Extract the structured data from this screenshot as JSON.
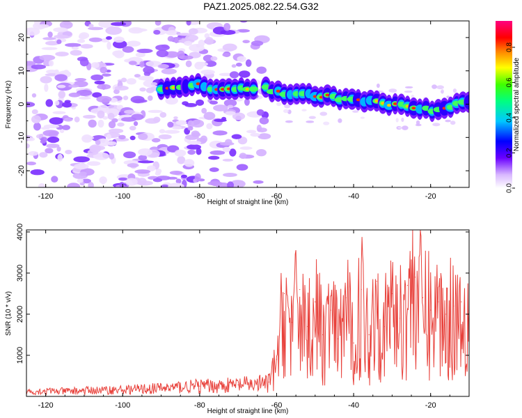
{
  "title": "PAZ1.2025.082.22.54.G32",
  "chart_data": [
    {
      "type": "heatmap",
      "xlabel": "Height of straight line (km)",
      "ylabel": "Frequency (Hz)",
      "xlim": [
        -125,
        -10
      ],
      "ylim": [
        -25,
        25
      ],
      "xticks": [
        -120,
        -100,
        -80,
        -60,
        -40,
        -20
      ],
      "yticks": [
        -20,
        -10,
        0,
        10,
        20
      ],
      "colorbar": {
        "label": "Normalized spectral amplitude",
        "range": [
          0,
          0.95
        ],
        "ticks": [
          "0.0",
          "0.2",
          "0.4",
          "0.6",
          "0.8"
        ]
      },
      "ridge": {
        "x": [
          -88,
          -82,
          -78,
          -72,
          -68,
          -64,
          -60,
          -55,
          -50,
          -45,
          -40,
          -35,
          -30,
          -25,
          -20,
          -15,
          -10
        ],
        "y": [
          5,
          6,
          5,
          4.5,
          5,
          5,
          3.5,
          3,
          2.5,
          2,
          1.5,
          1,
          0,
          -1,
          -2,
          -0.5,
          0.5
        ]
      }
    },
    {
      "type": "line",
      "xlabel": "Height of straight line (km)",
      "ylabel": "SNR (10 * v/v)",
      "xlim": [
        -125,
        -10
      ],
      "ylim": [
        0,
        4050
      ],
      "xticks": [
        -120,
        -100,
        -80,
        -60,
        -40,
        -20
      ],
      "yticks": [
        1000,
        2000,
        3000,
        4000
      ],
      "color": "#e8403a",
      "series": [
        {
          "x": [
            -125,
            -120,
            -115,
            -110,
            -105,
            -100,
            -95,
            -90,
            -85,
            -80,
            -75,
            -70,
            -65,
            -62,
            -60,
            -58,
            -56,
            -54,
            -52,
            -50,
            -48,
            -46,
            -44,
            -42,
            -40,
            -38,
            -36,
            -34,
            -32,
            -30,
            -28,
            -26,
            -24,
            -22,
            -20,
            -18,
            -16,
            -14,
            -12,
            -10
          ],
          "values": [
            120,
            130,
            125,
            140,
            150,
            160,
            180,
            200,
            230,
            250,
            260,
            280,
            300,
            350,
            900,
            2500,
            1800,
            2600,
            1700,
            2300,
            1500,
            2100,
            1400,
            2400,
            1300,
            2600,
            1500,
            2800,
            1700,
            2500,
            1900,
            2700,
            2900,
            2400,
            2100,
            2300,
            2000,
            2200,
            2300,
            2100
          ]
        }
      ]
    }
  ]
}
